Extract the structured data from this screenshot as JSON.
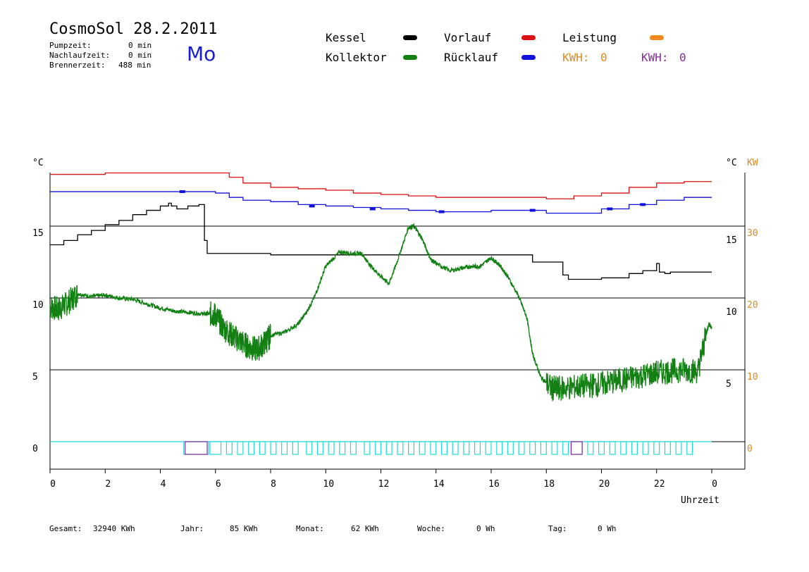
{
  "header": {
    "title": "CosmoSol 28.2.2011",
    "day": "Mo",
    "stats": [
      {
        "label": "Pumpzeit:",
        "value": "0 min"
      },
      {
        "label": "Nachlaufzeit:",
        "value": "0 min"
      },
      {
        "label": "Brennerzeit:",
        "value": "488 min"
      }
    ]
  },
  "legend": {
    "kessel": "Kessel",
    "kollektor": "Kollektor",
    "vorlauf": "Vorlauf",
    "ruecklauf": "Rücklauf",
    "leistung": "Leistung",
    "kwh1_label": "KWH:",
    "kwh1_value": "0",
    "kwh2_label": "KWH:",
    "kwh2_value": "0"
  },
  "colors": {
    "kessel": "#000000",
    "kollektor": "#128012",
    "vorlauf": "#dd1111",
    "ruecklauf": "#1111dd",
    "leistung": "#f08a1e",
    "pump": "#20d8d8",
    "burner": "#8a2a9e",
    "kw_axis": "#e08a1e"
  },
  "footer": {
    "gesamt_label": "Gesamt:",
    "gesamt_value": "32940 KWh",
    "jahr_label": "Jahr:",
    "jahr_value": "85 KWh",
    "monat_label": "Monat:",
    "monat_value": "62 KWh",
    "woche_label": "Woche:",
    "woche_value": "0 Wh",
    "tag_label": "Tag:",
    "tag_value": "0 Wh"
  },
  "chart_data": {
    "type": "line",
    "xlabel": "Uhrzeit",
    "ylabel_left": "°C",
    "ylabel_right": "°C",
    "ylabel_right2": "KW",
    "xlim": [
      0,
      24
    ],
    "x_ticks": [
      "0",
      "2",
      "4",
      "6",
      "8",
      "10",
      "12",
      "14",
      "16",
      "18",
      "20",
      "22",
      "0"
    ],
    "y_left_ticks": [
      "0",
      "5",
      "10",
      "15"
    ],
    "y_right_ticks": [
      "5",
      "10",
      "15"
    ],
    "y_kw_ticks": [
      "0",
      "10",
      "20",
      "30"
    ],
    "grid": "horizontal at 0, 5, 10, 15",
    "series": [
      {
        "name": "Vorlauf",
        "key": "vorlauf",
        "x": [
          0,
          1,
          2,
          3,
          4,
          5,
          6,
          6.5,
          7,
          8,
          9,
          10,
          11,
          12,
          13,
          14,
          15,
          16,
          17,
          18,
          18.5,
          19,
          20,
          21,
          22,
          23,
          24
        ],
        "y": [
          18.6,
          18.6,
          18.7,
          18.7,
          18.7,
          18.7,
          18.7,
          18.4,
          18,
          17.7,
          17.6,
          17.5,
          17.3,
          17.2,
          17.1,
          17.0,
          17.0,
          17.0,
          17.0,
          16.9,
          16.9,
          17.1,
          17.3,
          17.7,
          18.0,
          18.1,
          18.1
        ]
      },
      {
        "name": "Rücklauf",
        "key": "ruecklauf",
        "x": [
          0,
          1,
          2,
          3,
          4,
          5,
          6,
          6.5,
          7,
          8,
          9,
          10,
          11,
          12,
          13,
          14,
          15,
          16,
          17,
          18,
          19,
          20,
          21,
          22,
          23,
          24
        ],
        "y": [
          17.4,
          17.4,
          17.4,
          17.4,
          17.4,
          17.4,
          17.3,
          17.0,
          16.8,
          16.7,
          16.5,
          16.4,
          16.3,
          16.2,
          16.1,
          16.0,
          16.0,
          16.1,
          16.1,
          15.9,
          15.9,
          16.2,
          16.5,
          16.8,
          17.0,
          17.0
        ],
        "markers": [
          [
            4.8,
            17.4
          ],
          [
            9.5,
            16.4
          ],
          [
            11.7,
            16.2
          ],
          [
            14.2,
            16.0
          ],
          [
            17.5,
            16.1
          ],
          [
            20.3,
            16.2
          ],
          [
            21.5,
            16.5
          ]
        ]
      },
      {
        "name": "Kessel",
        "key": "kessel",
        "x": [
          0,
          0.5,
          1,
          1.5,
          2,
          2.5,
          3,
          3.5,
          4,
          4.3,
          4.4,
          4.6,
          5.0,
          5.4,
          5.5,
          5.6,
          5.7,
          6,
          8,
          10,
          12,
          14,
          16,
          17.5,
          18.2,
          18.6,
          18.8,
          19.5,
          20,
          21,
          21.5,
          22,
          22.1,
          22.3,
          22.5,
          24
        ],
        "y": [
          13.7,
          14.0,
          14.4,
          14.7,
          15.1,
          15.4,
          15.8,
          16.1,
          16.4,
          16.6,
          16.4,
          16.2,
          16.4,
          16.5,
          16.5,
          14.0,
          13.1,
          13.1,
          13.0,
          13.0,
          13.0,
          13.0,
          13.0,
          12.5,
          12.5,
          11.6,
          11.3,
          11.3,
          11.4,
          11.7,
          11.9,
          12.4,
          11.8,
          11.7,
          11.8,
          11.8
        ]
      },
      {
        "name": "Kollektor",
        "key": "kollektor",
        "x": [
          0,
          0.3,
          0.6,
          1,
          1.5,
          2,
          2.5,
          3,
          3.5,
          4,
          4.5,
          5,
          5.5,
          5.8,
          6,
          6.3,
          6.6,
          6.9,
          7.2,
          7.5,
          7.8,
          8,
          8.5,
          9,
          9.3,
          9.6,
          10,
          10.5,
          11,
          11.3,
          11.6,
          12,
          12.3,
          12.6,
          13,
          13.2,
          13.5,
          13.8,
          14,
          14.5,
          15,
          15.3,
          15.6,
          16,
          16.3,
          16.6,
          17,
          17.3,
          17.5,
          17.8,
          18.2,
          18.5,
          19,
          19.5,
          20,
          20.5,
          21,
          21.5,
          22,
          22.5,
          23,
          23.5,
          23.8,
          23.9,
          24
        ],
        "y": [
          9.4,
          9.2,
          9.6,
          10.3,
          10.1,
          10.2,
          10.0,
          9.9,
          9.6,
          9.3,
          9.1,
          9.0,
          8.9,
          8.9,
          8.8,
          7.9,
          7.4,
          7.0,
          6.6,
          6.4,
          6.9,
          7.4,
          7.6,
          8.2,
          9.0,
          10.1,
          12.2,
          13.2,
          13.1,
          13.1,
          12.3,
          11.5,
          11.0,
          12.6,
          14.9,
          15.0,
          14.1,
          12.7,
          12.4,
          11.9,
          12.1,
          12.2,
          12.2,
          12.8,
          12.3,
          11.5,
          10.1,
          8.6,
          6.1,
          4.5,
          3.7,
          3.7,
          3.8,
          3.9,
          4.0,
          4.2,
          4.4,
          4.6,
          4.8,
          4.9,
          5.0,
          4.9,
          7.5,
          8.2,
          7.9
        ]
      },
      {
        "name": "Pumpe",
        "key": "pump",
        "level": 0,
        "blocks": [
          [
            4.85,
            5.75
          ],
          [
            5.8,
            6.2
          ],
          [
            6.4,
            6.6
          ],
          [
            6.8,
            7.0
          ],
          [
            7.2,
            7.4
          ],
          [
            7.6,
            7.8
          ],
          [
            8.0,
            8.2
          ],
          [
            8.4,
            8.6
          ],
          [
            8.8,
            9.0
          ],
          [
            9.3,
            9.5
          ],
          [
            9.7,
            9.9
          ],
          [
            10.1,
            10.3
          ],
          [
            10.5,
            10.7
          ],
          [
            10.9,
            11.1
          ],
          [
            11.4,
            11.6
          ],
          [
            11.8,
            12.0
          ],
          [
            12.2,
            12.4
          ],
          [
            12.6,
            12.8
          ],
          [
            13.0,
            13.2
          ],
          [
            13.4,
            13.6
          ],
          [
            13.8,
            14.0
          ],
          [
            14.2,
            14.4
          ],
          [
            14.6,
            14.8
          ],
          [
            15.0,
            15.2
          ],
          [
            15.4,
            15.6
          ],
          [
            15.8,
            16.0
          ],
          [
            16.2,
            16.4
          ],
          [
            16.6,
            16.8
          ],
          [
            17.0,
            17.2
          ],
          [
            17.4,
            17.6
          ],
          [
            17.8,
            18.0
          ],
          [
            18.2,
            18.4
          ],
          [
            18.6,
            18.8
          ],
          [
            18.9,
            19.3
          ],
          [
            19.5,
            19.7
          ],
          [
            19.9,
            20.1
          ],
          [
            20.3,
            20.5
          ],
          [
            20.7,
            20.9
          ],
          [
            21.1,
            21.3
          ],
          [
            21.5,
            21.7
          ],
          [
            21.9,
            22.1
          ],
          [
            22.3,
            22.5
          ],
          [
            22.7,
            22.9
          ],
          [
            23.1,
            23.3
          ]
        ]
      },
      {
        "name": "Brenner",
        "key": "burner",
        "level": 0,
        "blocks": [
          [
            4.9,
            5.7
          ],
          [
            18.9,
            19.3
          ]
        ]
      }
    ]
  }
}
